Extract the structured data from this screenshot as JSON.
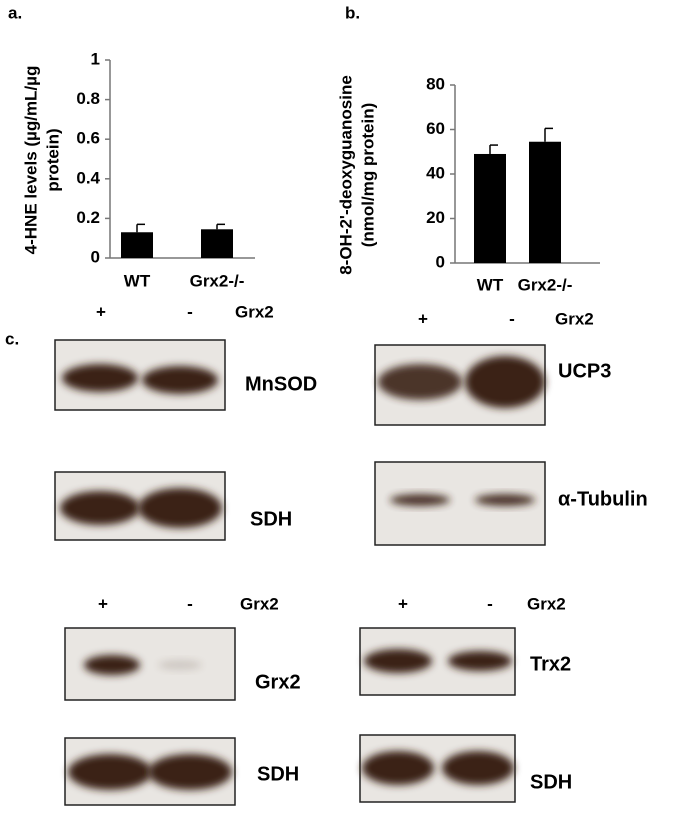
{
  "chart_data": [
    {
      "type": "bar",
      "title": "a.",
      "ylabel": [
        "4-HNE levels (µg/mL/µg",
        "protein)"
      ],
      "categories": [
        "WT",
        "Grx2-/-"
      ],
      "values": [
        0.13,
        0.145
      ],
      "errors": [
        0.04,
        0.025
      ],
      "color": "#000000",
      "ylim": [
        0,
        1
      ],
      "yticks": [
        0,
        0.2,
        0.4,
        0.6,
        0.8,
        1
      ]
    },
    {
      "type": "bar",
      "title": "b.",
      "ylabel": [
        "8-OH-2'-deoxyguanosine",
        "(nmol/mg protein)"
      ],
      "categories": [
        "WT",
        "Grx2-/-"
      ],
      "values": [
        49,
        54.5
      ],
      "errors": [
        4,
        6
      ],
      "color": "#000000",
      "ylim": [
        0,
        80
      ],
      "yticks": [
        0,
        20,
        40,
        60,
        80
      ]
    }
  ],
  "panel_c": {
    "label": "c.",
    "blots": [
      {
        "lanes": [
          "+",
          "-"
        ],
        "protein": "Grx2",
        "bands": [
          "MnSOD",
          "SDH"
        ]
      },
      {
        "lanes": [
          "+",
          "-"
        ],
        "protein": "Grx2",
        "bands": [
          "UCP3",
          "α-Tubulin"
        ]
      },
      {
        "lanes": [
          "+",
          "-"
        ],
        "protein": "Grx2",
        "bands": [
          "Grx2",
          "SDH"
        ]
      },
      {
        "lanes": [
          "+",
          "-"
        ],
        "protein": "Grx2",
        "bands": [
          "Trx2",
          "SDH"
        ]
      }
    ]
  }
}
